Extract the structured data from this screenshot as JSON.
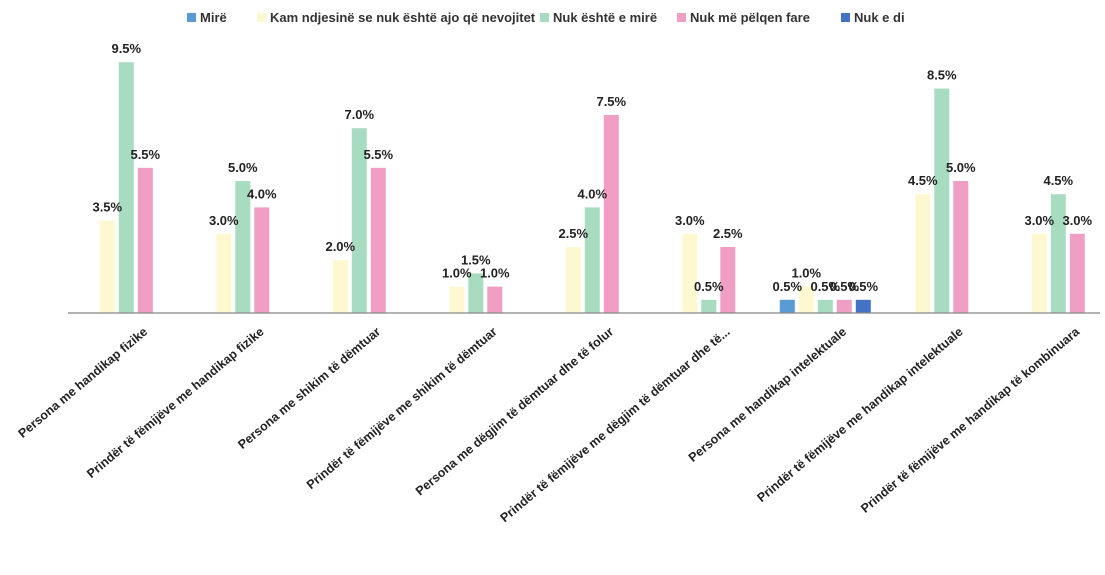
{
  "chart_data": {
    "type": "bar",
    "legend_position": "top",
    "grid": false,
    "ylim": [
      0,
      10
    ],
    "categories": [
      "Persona me handikap fizike",
      "Prindër të fëmijëve me handikap  fizike",
      "Persona me shikim të dëmtuar",
      "Prindër të fëmijëve me shikim të dëmtuar",
      "Persona me dëgjim të dëmtuar dhe të folur",
      "Prindër të fëmijëve me dëgjim të dëmtuar dhe të...",
      "Persona me handikap  intelektuale",
      "Prindër të fëmijëve me handikap intelektuale",
      "Prindër të fëmijëve me  handikap të kombinuara"
    ],
    "series": [
      {
        "name": "Mirë",
        "color": "#5b9bd5",
        "values": [
          null,
          null,
          null,
          null,
          null,
          null,
          0.5,
          null,
          null
        ]
      },
      {
        "name": "Kam ndjesinë se nuk është ajo që nevojitet",
        "color": "#fdf8cf",
        "values": [
          3.5,
          3.0,
          2.0,
          1.0,
          2.5,
          3.0,
          1.0,
          4.5,
          3.0
        ]
      },
      {
        "name": "Nuk është e mirë",
        "color": "#a8dcc0",
        "values": [
          9.5,
          5.0,
          7.0,
          1.5,
          4.0,
          0.5,
          0.5,
          8.5,
          4.5
        ]
      },
      {
        "name": "Nuk më pëlqen fare",
        "color": "#f19ec4",
        "values": [
          5.5,
          4.0,
          5.5,
          1.0,
          7.5,
          2.5,
          0.5,
          5.0,
          3.0
        ]
      },
      {
        "name": "Nuk e di",
        "color": "#4472c4",
        "values": [
          null,
          null,
          null,
          null,
          null,
          null,
          0.5,
          null,
          null
        ]
      }
    ],
    "value_suffix": "%"
  }
}
